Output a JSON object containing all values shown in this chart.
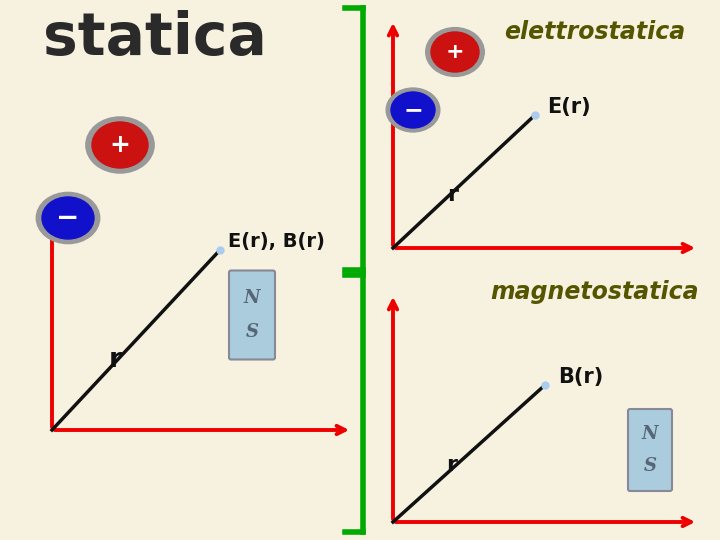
{
  "bg_color": "#f7f2e0",
  "title_statica": "statica",
  "title_statica_color": "#2a2a2a",
  "title_elettrostatica": "elettrostatica",
  "title_elettrostatica_color": "#555500",
  "title_magnetostatica": "magnetostatica",
  "title_magnetostatica_color": "#555500",
  "label_Er_Br": "E(r), B(r)",
  "label_Er": "E(r)",
  "label_Br": "B(r)",
  "label_r": "r",
  "red_color": "#ee0000",
  "black_color": "#111111",
  "green_color": "#00aa00",
  "plus_fill": "#cc1111",
  "minus_fill": "#1111cc",
  "charge_border": "#999999",
  "magnet_fill": "#aaccdd",
  "magnet_border": "#888899",
  "dot_color": "#aaccee",
  "white": "#ffffff",
  "label_color": "#111111"
}
